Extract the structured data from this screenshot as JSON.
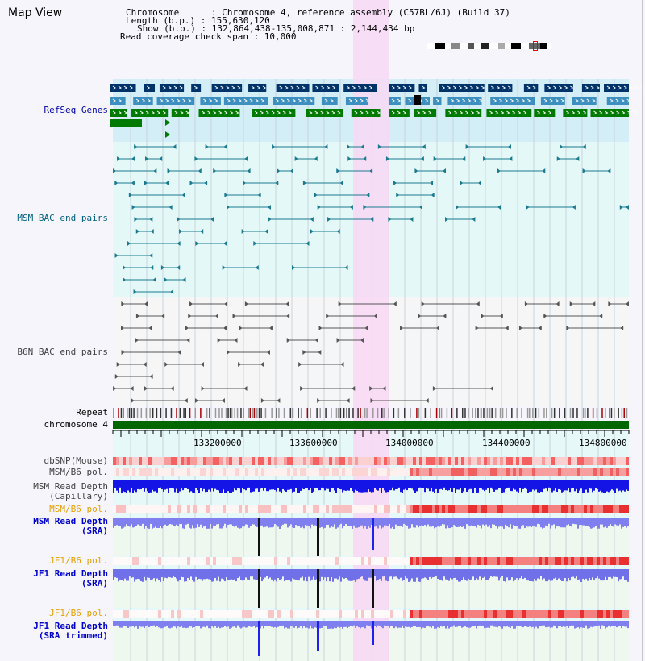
{
  "header": {
    "title": "Map View",
    "chromosome_line": "Chromosome      : Chromosome 4, reference assembly (C57BL/6J) (Build 37)",
    "length_line": "Length (b.p.) : 155,630,120",
    "show_line": "Show (b.p.) : 132,864,438-135,008,871 : 2,144,434 bp",
    "coverage_line": "Read coverage check span : 10,000"
  },
  "tracks": [
    {
      "name": "refseq",
      "label": "RefSeq Genes",
      "color": "#0000aa"
    },
    {
      "name": "msm-bac",
      "label": "MSM BAC end pairs",
      "color": "#006080"
    },
    {
      "name": "b6n-bac",
      "label": "B6N BAC end pairs",
      "color": "#404040"
    },
    {
      "name": "repeat",
      "label": "Repeat",
      "color": "#000000"
    },
    {
      "name": "chromosome",
      "label": "chromosome 4",
      "color": "#000000"
    },
    {
      "name": "dbsnp",
      "label": "dbSNP(Mouse)",
      "color": "#404040"
    },
    {
      "name": "msm-b6-pol-1",
      "label": "MSM/B6 pol.",
      "color": "#404040"
    },
    {
      "name": "msm-depth-cap",
      "label": "MSM Read Depth",
      "label2": "(Capillary)",
      "color": "#404040"
    },
    {
      "name": "msm-b6-pol-2",
      "label": "MSM/B6 pol.",
      "color": "#e8a000"
    },
    {
      "name": "msm-depth-sra",
      "label": "MSM Read Depth",
      "label2": "(SRA)",
      "color": "#0000cc"
    },
    {
      "name": "jf1-b6-pol-1",
      "label": "JF1/B6 pol.",
      "color": "#e8a000"
    },
    {
      "name": "jf1-depth-sra",
      "label": "JF1 Read Depth",
      "label2": "(SRA)",
      "color": "#0000cc"
    },
    {
      "name": "jf1-b6-pol-2",
      "label": "JF1/B6 pol.",
      "color": "#e8a000"
    },
    {
      "name": "jf1-depth-trim",
      "label": "JF1 Read Depth",
      "label2": "(SRA trimmed)",
      "color": "#0000cc"
    }
  ],
  "axis": {
    "ticks": [
      "133200000",
      "133600000",
      "134000000",
      "134400000",
      "134800000"
    ]
  },
  "colors": {
    "highlight": "#f8d8f4",
    "refseq_dark": "#00336a",
    "refseq_mid": "#3d8fbf",
    "refseq_green": "#007a00",
    "chrom_bar": "#006600"
  }
}
